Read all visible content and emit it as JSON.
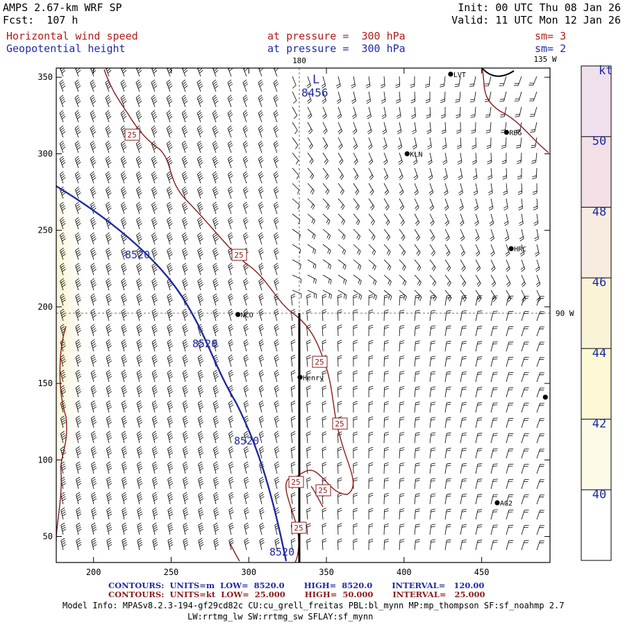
{
  "header": {
    "model": "AMPS 2.67-km WRF SP",
    "init": "Init: 00 UTC Thu 08 Jan 26",
    "fcst": "Fcst:  107 h",
    "valid": "Valid: 11 UTC Mon 12 Jan 26",
    "field1_name": "Horizontal wind speed",
    "field1_level": "at pressure =  300 hPa",
    "field1_sm": "sm= 3",
    "field2_name": "Geopotential height",
    "field2_level": "at pressure =  300 hPa",
    "field2_sm": "sm= 2"
  },
  "map": {
    "lon_labels": {
      "top": "180",
      "top_right": "135 W",
      "right": "90 W"
    },
    "x_ticks": [
      200,
      250,
      300,
      350,
      400,
      450
    ],
    "y_ticks": [
      50,
      100,
      150,
      200,
      250,
      300,
      350
    ],
    "extent": {
      "x": [
        176,
        494
      ],
      "y": [
        33,
        356
      ]
    },
    "low_marker": {
      "letter": "L",
      "value": "8456"
    },
    "stations": [
      {
        "name": "LVT",
        "x": 430,
        "y": 352
      },
      {
        "name": "RBG",
        "x": 466,
        "y": 314
      },
      {
        "name": "KLN",
        "x": 402,
        "y": 300
      },
      {
        "name": "HRC",
        "x": 469,
        "y": 238
      },
      {
        "name": "NCO",
        "x": 293,
        "y": 195
      },
      {
        "name": "Henry",
        "x": 333,
        "y": 154
      },
      {
        "name": "AG2",
        "x": 460,
        "y": 72
      },
      {
        "name": "",
        "x": 491,
        "y": 141
      }
    ],
    "height_contour_labels": [
      "8520",
      "8520",
      "8520",
      "8520"
    ],
    "speed_contour_labels": [
      "25",
      "25",
      "25",
      "25",
      "25",
      "25",
      "25"
    ],
    "colors": {
      "height": "#1f2aa0",
      "speed": "#8b1a1a",
      "barb": "#000000"
    }
  },
  "colorbar": {
    "unit": "kt",
    "labels": [
      "50",
      "48",
      "46",
      "44",
      "42",
      "40"
    ],
    "colors": [
      "#f0e0ee",
      "#f3dfe6",
      "#f8ece0",
      "#fbf3d6",
      "#fdf8d6",
      "#fdfbe8",
      "#ffffff"
    ]
  },
  "footer": {
    "contours1": "CONTOURS:  UNITS=m  LOW=  8520.0       HIGH=  8520.0       INTERVAL=   120.00",
    "contours2": "CONTOURS:  UNITS=kt  LOW=  25.000       HIGH=  50.000       INTERVAL=   25.000",
    "model_info": "Model Info: MPASv8.2.3-194-gf29cd82c CU:cu_grell_freitas PBL:bl_mynn MP:mp_thompson SF:sf_noahmp 2.7",
    "model_info2": "LW:rrtmg_lw SW:rrtmg_sw SFLAY:sf_mynn"
  }
}
